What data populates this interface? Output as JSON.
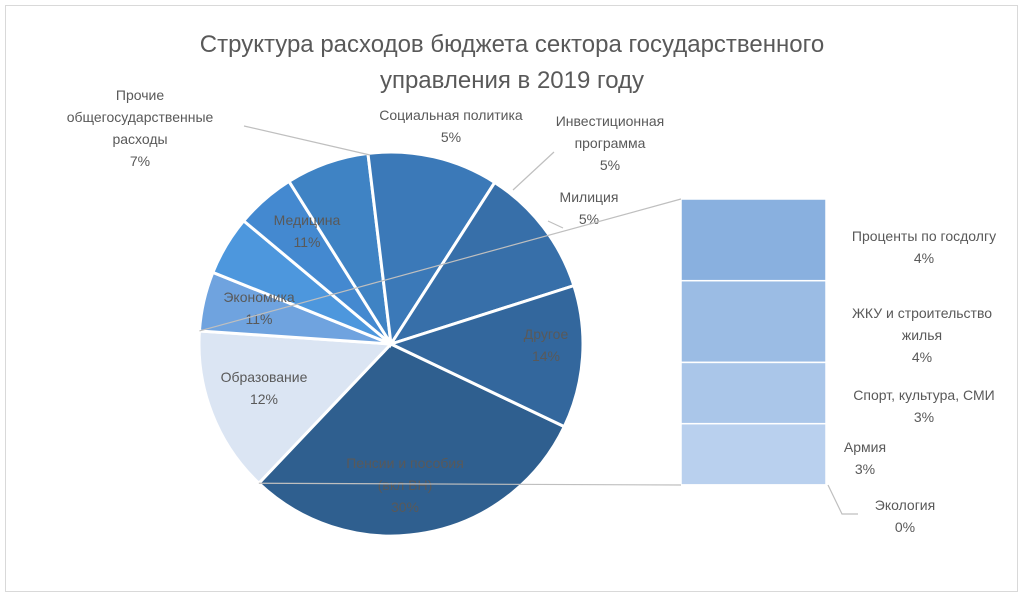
{
  "chart_data": {
    "type": "pie",
    "subtype": "bar-of-pie",
    "title_lines": [
      "Структура расходов бюджета сектора государственного",
      "управления в 2019 году"
    ],
    "pie": [
      {
        "label_lines": [
          "Пенсии и пособия",
          "(вкл ВН)"
        ],
        "value_label": "30%",
        "value": 30,
        "color": "#2f5f8f",
        "text_color": "#1f4468"
      },
      {
        "label_lines": [
          "Другое"
        ],
        "value_label": "14%",
        "value": 14,
        "color": "#dbe5f3",
        "text_color": "#595959"
      },
      {
        "label_lines": [
          "Милиция"
        ],
        "value_label": "5%",
        "value": 5,
        "color": "#6fa3df",
        "text_color": "#595959"
      },
      {
        "label_lines": [
          "Инвестиционная",
          "программа"
        ],
        "value_label": "5%",
        "value": 5,
        "color": "#4d97dd",
        "text_color": "#595959"
      },
      {
        "label_lines": [
          "Социальная политика"
        ],
        "value_label": "5%",
        "value": 5,
        "color": "#4489d0",
        "text_color": "#595959"
      },
      {
        "label_lines": [
          "Прочие",
          "общегосударственные",
          "расходы"
        ],
        "value_label": "7%",
        "value": 7,
        "color": "#3f83c4",
        "text_color": "#595959"
      },
      {
        "label_lines": [
          "Медицина"
        ],
        "value_label": "11%",
        "value": 11,
        "color": "#3b79b8",
        "text_color": "#595959"
      },
      {
        "label_lines": [
          "Экономика"
        ],
        "value_label": "11%",
        "value": 11,
        "color": "#376fa9",
        "text_color": "#595959"
      },
      {
        "label_lines": [
          "Образование"
        ],
        "value_label": "12%",
        "value": 12,
        "color": "#33679d",
        "text_color": "#4f7fb3"
      }
    ],
    "bar": [
      {
        "label_lines": [
          "Проценты по госдолгу"
        ],
        "value_label": "4%",
        "value": 4,
        "color": "#89b0df"
      },
      {
        "label_lines": [
          "ЖКУ и строительство",
          "жилья"
        ],
        "value_label": "4%",
        "value": 4,
        "color": "#9bbce4"
      },
      {
        "label_lines": [
          "Спорт, культура, СМИ"
        ],
        "value_label": "3%",
        "value": 3,
        "color": "#aac6e9"
      },
      {
        "label_lines": [
          "Армия"
        ],
        "value_label": "3%",
        "value": 3,
        "color": "#b9d0ee"
      },
      {
        "label_lines": [
          "Экология"
        ],
        "value_label": "0%",
        "value": 0.001,
        "color": "#c8dbf2"
      }
    ],
    "colors": {
      "text": "#595959",
      "leader": "#bfbfbf",
      "separator": "#ffffff"
    }
  }
}
